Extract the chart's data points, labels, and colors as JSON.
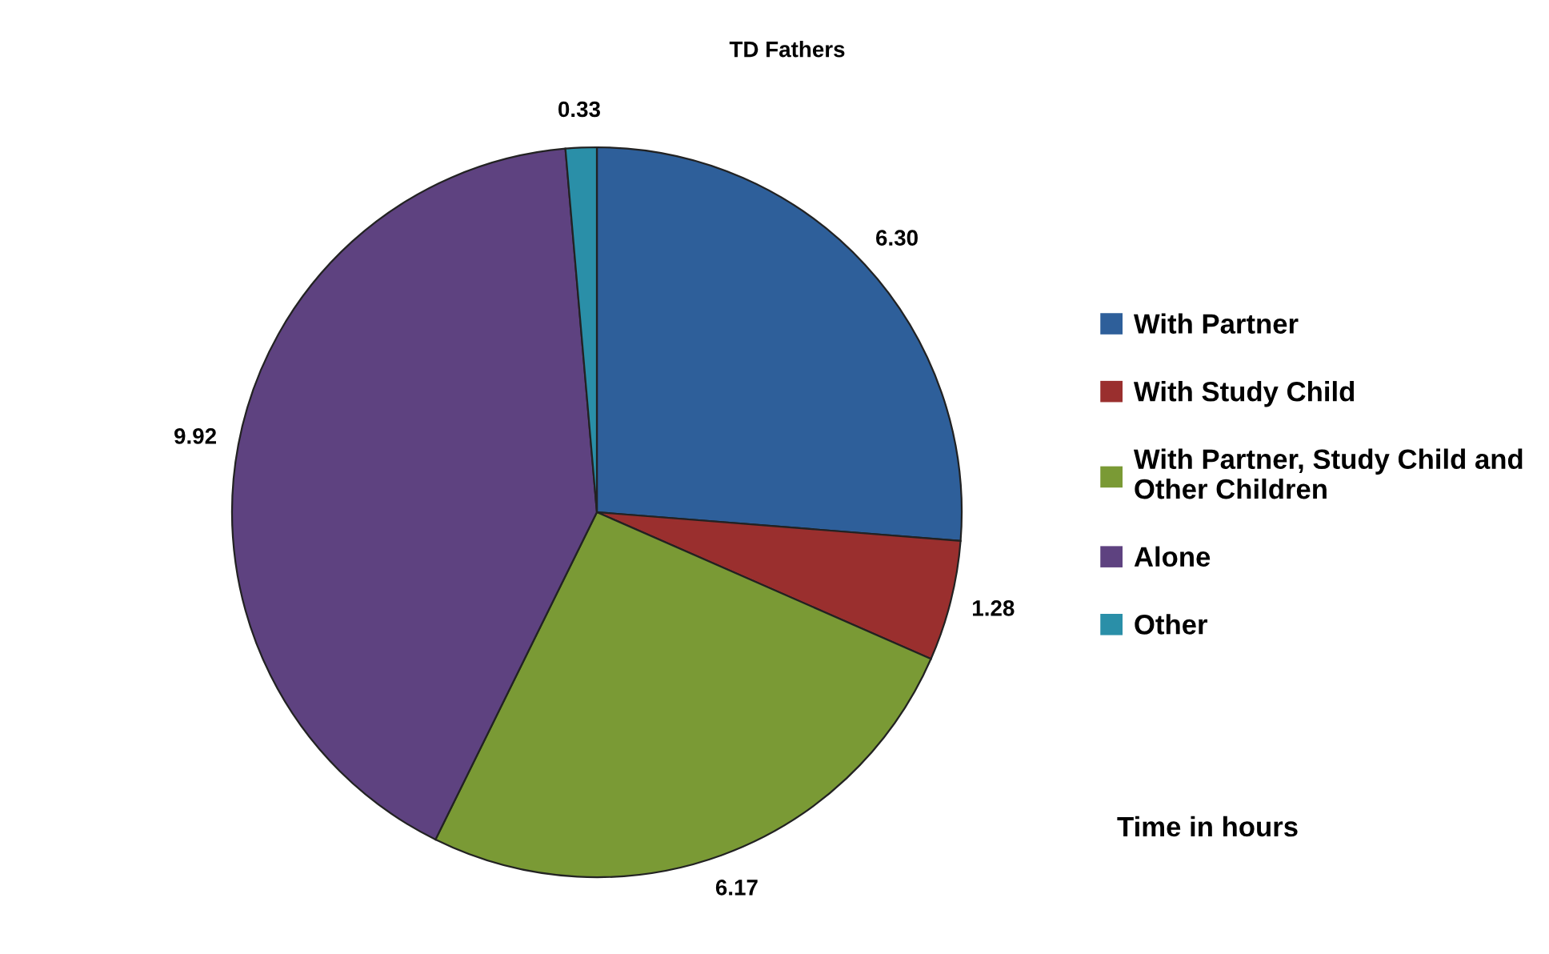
{
  "chart_data": {
    "type": "pie",
    "title": "TD Fathers",
    "categories": [
      "With Partner",
      "With Study Child",
      "With Partner, Study Child and Other Children",
      "Alone",
      "Other"
    ],
    "values": [
      6.3,
      1.28,
      6.17,
      9.92,
      0.33
    ],
    "value_labels": [
      "6.30",
      "1.28",
      "6.17",
      "9.92",
      "0.33"
    ],
    "colors": [
      "#2e5f9a",
      "#9a2f2e",
      "#7a9a35",
      "#5e4280",
      "#2a8fa8"
    ],
    "legend": "right",
    "annotations": [
      "Time in hours"
    ]
  }
}
